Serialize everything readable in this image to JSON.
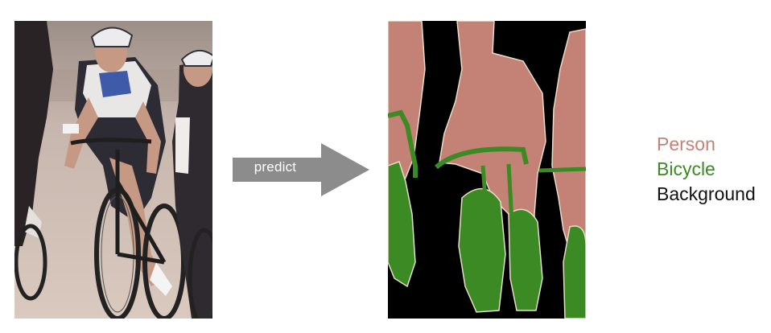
{
  "arrow": {
    "label": "predict"
  },
  "legend": {
    "items": [
      {
        "label": "Person",
        "color": "#C48276"
      },
      {
        "label": "Bicycle",
        "color": "#3C8A23"
      },
      {
        "label": "Background",
        "color": "#111111"
      }
    ]
  },
  "colors": {
    "person": "#C48276",
    "bicycle": "#3C8A23",
    "background": "#000000",
    "boundary": "#E8DCC8",
    "arrow": "#8C8C8C"
  }
}
